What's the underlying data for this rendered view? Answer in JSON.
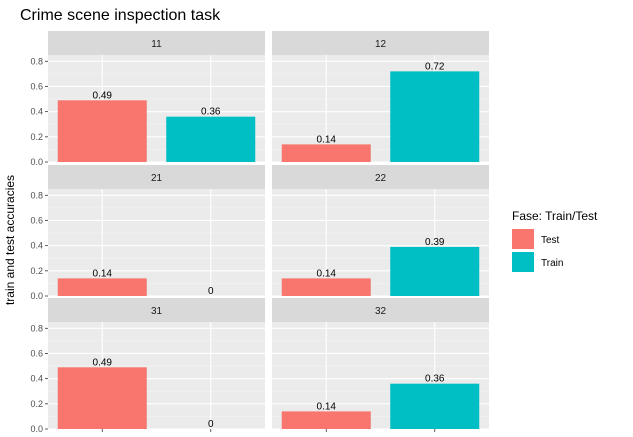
{
  "chart_data": {
    "type": "bar",
    "title": "Crime scene inspection task",
    "xlabel": "",
    "ylabel": "train and test accuracies",
    "ylim": [
      0,
      0.85
    ],
    "yticks": [
      0.0,
      0.2,
      0.4,
      0.6,
      0.8
    ],
    "ytick_labels": [
      "0.0",
      "0.2",
      "0.4",
      "0.6",
      "0.8"
    ],
    "grid": true,
    "facet_layout": {
      "rows": 3,
      "cols": 2
    },
    "legend": {
      "title": "Fase: Train/Test",
      "placement": "right",
      "entries": [
        {
          "name": "Test",
          "color": "#F8766D"
        },
        {
          "name": "Train",
          "color": "#00BFC4"
        }
      ]
    },
    "categories": [
      "Test",
      "Train"
    ],
    "facets": [
      {
        "label": "11",
        "values": [
          0.49,
          0.36
        ],
        "value_labels": [
          "0.49",
          "0.36"
        ]
      },
      {
        "label": "12",
        "values": [
          0.14,
          0.72
        ],
        "value_labels": [
          "0.14",
          "0.72"
        ]
      },
      {
        "label": "21",
        "values": [
          0.14,
          0
        ],
        "value_labels": [
          "0.14",
          "0"
        ]
      },
      {
        "label": "22",
        "values": [
          0.14,
          0.39
        ],
        "value_labels": [
          "0.14",
          "0.39"
        ]
      },
      {
        "label": "31",
        "values": [
          0.49,
          0
        ],
        "value_labels": [
          "0.49",
          "0"
        ]
      },
      {
        "label": "32",
        "values": [
          0.14,
          0.36
        ],
        "value_labels": [
          "0.14",
          "0.36"
        ]
      }
    ],
    "colors": {
      "panel_bg": "#EBEBEB",
      "strip_bg": "#D9D9D9",
      "grid_major": "#FFFFFF",
      "grid_minor": "#F4F4F4",
      "tick": "#333333"
    }
  }
}
